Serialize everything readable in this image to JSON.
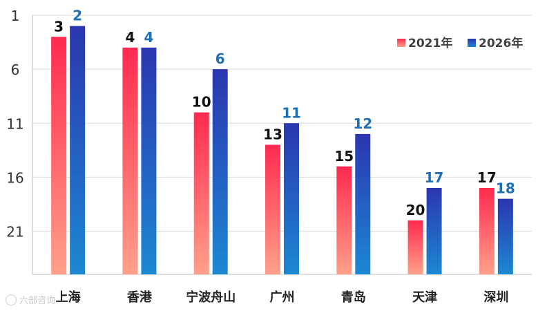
{
  "chart_data": {
    "type": "bar",
    "categories": [
      "上海",
      "香港",
      "宁波舟山",
      "广州",
      "青岛",
      "天津",
      "深圳"
    ],
    "series": [
      {
        "name": "2021年",
        "values": [
          3,
          4,
          10,
          13,
          15,
          20,
          17
        ]
      },
      {
        "name": "2026年",
        "values": [
          2,
          4,
          6,
          11,
          12,
          17,
          18
        ]
      }
    ],
    "y_axis": {
      "inverted": true,
      "range": [
        1,
        25
      ],
      "ticks": [
        1,
        6,
        11,
        16,
        21
      ]
    },
    "grid": true,
    "legend_position": "top-right",
    "colors": {
      "series_2021_top": "#ff2a4f",
      "series_2021_bottom": "#ffa08a",
      "series_2026_top": "#2b36b0",
      "series_2026_bottom": "#1c88d2",
      "label_2021": "#111111",
      "label_2026": "#1f6fb5"
    }
  },
  "watermark": {
    "text": "六部咨询"
  }
}
